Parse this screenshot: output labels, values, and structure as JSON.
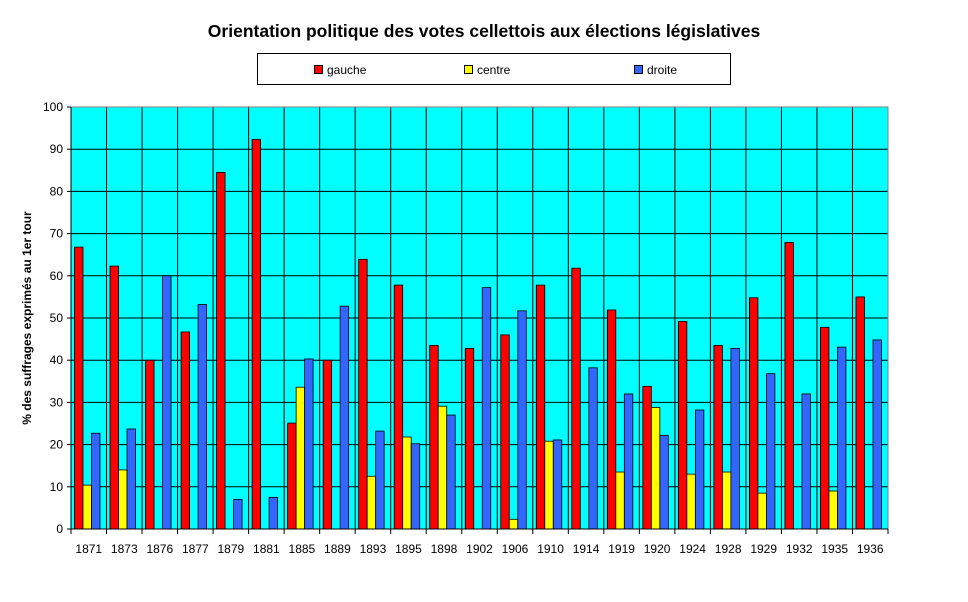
{
  "chart_data": {
    "type": "bar",
    "title": "Orientation politique des votes cellettois aux élections législatives",
    "xlabel": "",
    "ylabel": "% des suffrages exprimés au 1er tour",
    "ylim": [
      0,
      100
    ],
    "yticks": [
      0,
      10,
      20,
      30,
      40,
      50,
      60,
      70,
      80,
      90,
      100
    ],
    "grid": true,
    "legend_position": "top",
    "plot_background": "#00FFFF",
    "categories": [
      "1871",
      "1873",
      "1876",
      "1877",
      "1879",
      "1881",
      "1885",
      "1889",
      "1893",
      "1895",
      "1898",
      "1902",
      "1906",
      "1910",
      "1914",
      "1919",
      "1920",
      "1924",
      "1928",
      "1929",
      "1932",
      "1935",
      "1936"
    ],
    "series": [
      {
        "name": "gauche",
        "color": "#FF0000",
        "values": [
          66.8,
          62.3,
          40,
          46.7,
          84.5,
          92.3,
          25.1,
          40,
          63.9,
          57.8,
          43.5,
          42.8,
          46,
          57.8,
          61.8,
          51.9,
          33.8,
          49.2,
          43.5,
          54.8,
          67.9,
          47.8,
          55
        ]
      },
      {
        "name": "centre",
        "color": "#FFFF00",
        "values": [
          10.4,
          14,
          0,
          0,
          0,
          0,
          33.6,
          0,
          12.5,
          21.8,
          29.1,
          0,
          2.3,
          20.8,
          0,
          13.5,
          28.8,
          13,
          13.5,
          8.5,
          0,
          9,
          0
        ]
      },
      {
        "name": "droite",
        "color": "#3366FF",
        "values": [
          22.7,
          23.7,
          60,
          53.2,
          7,
          7.5,
          40.3,
          52.8,
          23.2,
          20.2,
          27,
          57.2,
          51.7,
          21.1,
          38.2,
          32,
          22.2,
          28.2,
          42.8,
          36.8,
          32,
          43.1,
          44.8
        ]
      }
    ]
  }
}
